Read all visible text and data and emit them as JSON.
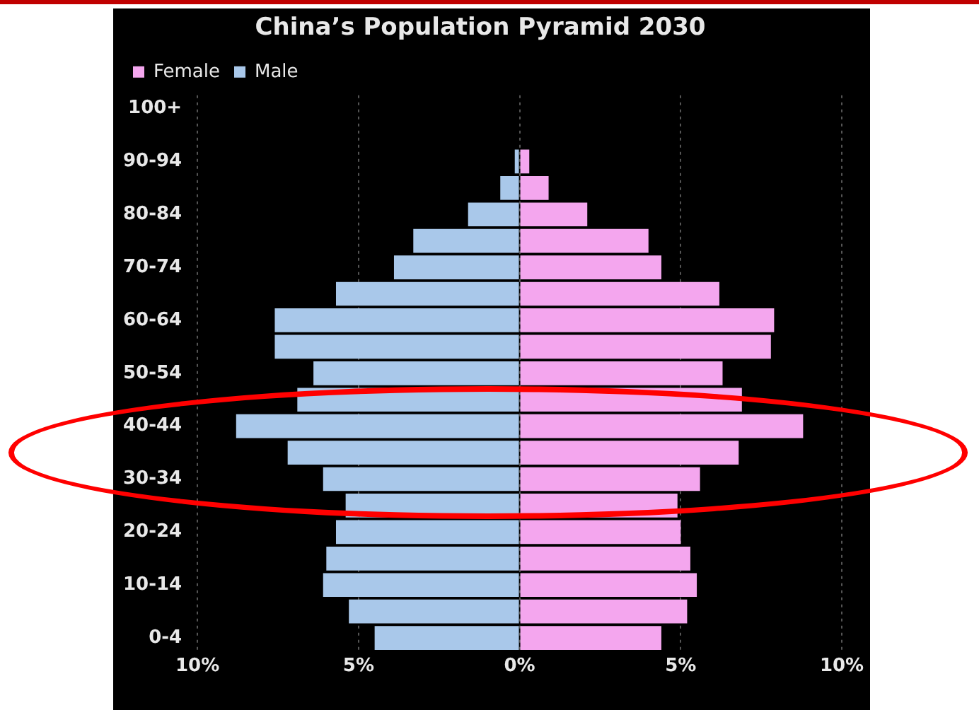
{
  "chart_data": {
    "type": "bar",
    "orientation": "horizontal",
    "stacked": true,
    "title": "China’s Population Pyramid 2030",
    "categories": [
      "100+",
      null,
      "90-94",
      null,
      "80-84",
      null,
      "70-74",
      null,
      "60-64",
      null,
      "50-54",
      null,
      "40-44",
      null,
      "30-34",
      null,
      "20-24",
      null,
      "10-14",
      null,
      "0-4"
    ],
    "series": [
      {
        "name": "Female",
        "color": "#f4a6ee",
        "values": [
          0,
          0,
          0.3,
          0.9,
          2.1,
          4.0,
          4.4,
          6.2,
          7.9,
          7.8,
          6.3,
          6.9,
          8.8,
          6.8,
          5.6,
          4.9,
          5.0,
          5.3,
          5.5,
          5.2,
          4.4
        ]
      },
      {
        "name": "Male",
        "color": "#a9c8ea",
        "values": [
          0,
          0,
          -0.15,
          -0.6,
          -1.6,
          -3.3,
          -3.9,
          -5.7,
          -7.6,
          -7.6,
          -6.4,
          -6.9,
          -8.8,
          -7.2,
          -6.1,
          -5.4,
          -5.7,
          -6.0,
          -6.1,
          -5.3,
          -4.5
        ]
      }
    ],
    "xlim": [
      -10,
      10
    ],
    "xticks": [
      {
        "value": -10,
        "label": "10%"
      },
      {
        "value": -5,
        "label": "5%"
      },
      {
        "value": 0,
        "label": "0%"
      },
      {
        "value": 5,
        "label": "5%"
      },
      {
        "value": 10,
        "label": "10%"
      }
    ],
    "grid": "x",
    "legend": "top left"
  }
}
